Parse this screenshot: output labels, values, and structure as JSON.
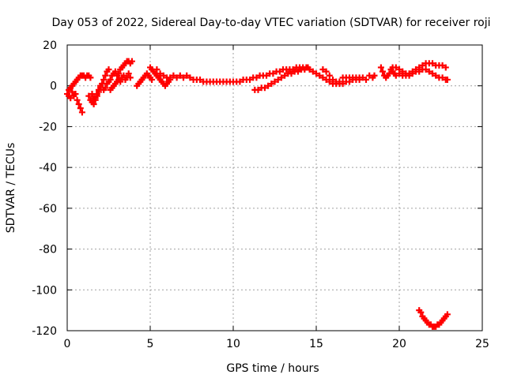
{
  "chart_data": {
    "type": "scatter",
    "title": "Day 053 of 2022, Sidereal Day-to-day VTEC variation (SDTVAR) for receiver roji",
    "xlabel": "GPS time / hours",
    "ylabel": "SDTVAR / TECUs",
    "xlim": [
      0,
      25
    ],
    "ylim": [
      -120,
      20
    ],
    "xticks": [
      0,
      5,
      10,
      15,
      20,
      25
    ],
    "xtick_labels": [
      "0",
      "5",
      "10",
      "15",
      "20",
      "25"
    ],
    "yticks": [
      -120,
      -100,
      -80,
      -60,
      -40,
      -20,
      0,
      20
    ],
    "ytick_labels": [
      "-120",
      "-100",
      "-80",
      "-60",
      "-40",
      "-20",
      "0",
      "20"
    ],
    "grid": true,
    "marker": "plus",
    "marker_color": "#ff0000",
    "series": [
      {
        "name": "SDTVAR",
        "color": "#ff0000",
        "points": [
          [
            0.0,
            -4
          ],
          [
            0.1,
            -5
          ],
          [
            0.2,
            -6
          ],
          [
            0.3,
            -3
          ],
          [
            0.4,
            -5
          ],
          [
            0.5,
            -4
          ],
          [
            0.6,
            -7
          ],
          [
            0.7,
            -9
          ],
          [
            0.8,
            -11
          ],
          [
            0.9,
            -13
          ],
          [
            0.1,
            -2
          ],
          [
            0.2,
            -1
          ],
          [
            0.3,
            0
          ],
          [
            0.4,
            1
          ],
          [
            0.5,
            2
          ],
          [
            0.6,
            3
          ],
          [
            0.7,
            4
          ],
          [
            0.8,
            5
          ],
          [
            0.9,
            5
          ],
          [
            1.0,
            5
          ],
          [
            1.1,
            4
          ],
          [
            1.2,
            5
          ],
          [
            1.3,
            5
          ],
          [
            1.4,
            4
          ],
          [
            1.3,
            -5
          ],
          [
            1.4,
            -7
          ],
          [
            1.5,
            -8
          ],
          [
            1.6,
            -9
          ],
          [
            1.7,
            -7
          ],
          [
            1.8,
            -5
          ],
          [
            1.9,
            -3
          ],
          [
            2.0,
            -1
          ],
          [
            2.1,
            1
          ],
          [
            2.2,
            3
          ],
          [
            2.3,
            5
          ],
          [
            2.4,
            7
          ],
          [
            2.5,
            8
          ],
          [
            1.5,
            -4
          ],
          [
            1.6,
            -6
          ],
          [
            1.7,
            -6
          ],
          [
            1.8,
            -4
          ],
          [
            1.9,
            -2
          ],
          [
            2.0,
            0
          ],
          [
            2.2,
            -2
          ],
          [
            2.3,
            -1
          ],
          [
            2.4,
            1
          ],
          [
            2.5,
            2
          ],
          [
            2.6,
            3
          ],
          [
            2.7,
            5
          ],
          [
            2.8,
            6
          ],
          [
            2.9,
            7
          ],
          [
            3.0,
            5
          ],
          [
            3.1,
            6
          ],
          [
            3.2,
            8
          ],
          [
            3.3,
            9
          ],
          [
            3.4,
            10
          ],
          [
            3.5,
            11
          ],
          [
            3.6,
            12
          ],
          [
            3.7,
            12
          ],
          [
            3.8,
            11
          ],
          [
            3.9,
            12
          ],
          [
            2.6,
            -2
          ],
          [
            2.7,
            -1
          ],
          [
            2.8,
            0
          ],
          [
            2.9,
            1
          ],
          [
            3.0,
            2
          ],
          [
            3.1,
            3
          ],
          [
            3.2,
            2
          ],
          [
            3.3,
            4
          ],
          [
            3.4,
            5
          ],
          [
            3.5,
            3
          ],
          [
            3.6,
            4
          ],
          [
            3.7,
            6
          ],
          [
            3.8,
            4
          ],
          [
            4.2,
            0
          ],
          [
            4.3,
            1
          ],
          [
            4.4,
            2
          ],
          [
            4.5,
            3
          ],
          [
            4.6,
            4
          ],
          [
            4.7,
            5
          ],
          [
            4.8,
            6
          ],
          [
            4.9,
            5
          ],
          [
            5.0,
            4
          ],
          [
            5.1,
            3
          ],
          [
            5.0,
            9
          ],
          [
            5.1,
            8
          ],
          [
            5.2,
            7
          ],
          [
            5.3,
            6
          ],
          [
            5.4,
            5
          ],
          [
            5.5,
            4
          ],
          [
            5.6,
            3
          ],
          [
            5.7,
            2
          ],
          [
            5.8,
            1
          ],
          [
            5.9,
            0
          ],
          [
            6.0,
            1
          ],
          [
            6.1,
            2
          ],
          [
            6.2,
            3
          ],
          [
            5.4,
            8
          ],
          [
            5.6,
            6
          ],
          [
            5.8,
            5
          ],
          [
            6.0,
            4
          ],
          [
            6.2,
            4
          ],
          [
            6.4,
            5
          ],
          [
            6.6,
            4
          ],
          [
            6.8,
            5
          ],
          [
            7.0,
            4
          ],
          [
            7.2,
            5
          ],
          [
            7.4,
            4
          ],
          [
            7.6,
            3
          ],
          [
            7.8,
            3
          ],
          [
            8.0,
            3
          ],
          [
            8.2,
            2
          ],
          [
            8.4,
            2
          ],
          [
            8.6,
            2
          ],
          [
            8.8,
            2
          ],
          [
            9.0,
            2
          ],
          [
            9.2,
            2
          ],
          [
            9.4,
            2
          ],
          [
            9.6,
            2
          ],
          [
            9.8,
            2
          ],
          [
            10.0,
            2
          ],
          [
            10.2,
            2
          ],
          [
            10.4,
            2
          ],
          [
            10.6,
            3
          ],
          [
            10.8,
            3
          ],
          [
            11.0,
            3
          ],
          [
            11.2,
            4
          ],
          [
            11.4,
            4
          ],
          [
            11.6,
            5
          ],
          [
            11.8,
            5
          ],
          [
            12.0,
            5
          ],
          [
            11.3,
            -2
          ],
          [
            11.5,
            -2
          ],
          [
            11.7,
            -1
          ],
          [
            11.9,
            -1
          ],
          [
            12.1,
            0
          ],
          [
            12.3,
            1
          ],
          [
            12.5,
            2
          ],
          [
            12.7,
            3
          ],
          [
            12.9,
            4
          ],
          [
            13.1,
            5
          ],
          [
            12.2,
            6
          ],
          [
            12.4,
            6
          ],
          [
            12.6,
            7
          ],
          [
            12.8,
            7
          ],
          [
            13.0,
            8
          ],
          [
            13.2,
            8
          ],
          [
            13.4,
            8
          ],
          [
            13.6,
            8
          ],
          [
            13.8,
            9
          ],
          [
            14.0,
            9
          ],
          [
            14.2,
            9
          ],
          [
            14.4,
            9
          ],
          [
            14.6,
            8
          ],
          [
            13.3,
            6
          ],
          [
            13.5,
            6
          ],
          [
            13.7,
            7
          ],
          [
            13.9,
            7
          ],
          [
            14.1,
            8
          ],
          [
            14.3,
            8
          ],
          [
            14.5,
            9
          ],
          [
            14.8,
            7
          ],
          [
            15.0,
            6
          ],
          [
            15.2,
            5
          ],
          [
            15.4,
            4
          ],
          [
            15.6,
            3
          ],
          [
            15.8,
            2
          ],
          [
            16.0,
            1
          ],
          [
            16.2,
            1
          ],
          [
            16.4,
            2
          ],
          [
            15.4,
            8
          ],
          [
            15.6,
            7
          ],
          [
            15.8,
            5
          ],
          [
            16.0,
            3
          ],
          [
            16.2,
            2
          ],
          [
            16.4,
            1
          ],
          [
            16.6,
            1
          ],
          [
            16.8,
            2
          ],
          [
            17.0,
            2
          ],
          [
            17.2,
            3
          ],
          [
            17.4,
            3
          ],
          [
            17.6,
            3
          ],
          [
            16.6,
            4
          ],
          [
            16.8,
            4
          ],
          [
            17.0,
            4
          ],
          [
            17.2,
            4
          ],
          [
            17.4,
            4
          ],
          [
            17.6,
            4
          ],
          [
            17.8,
            4
          ],
          [
            18.0,
            3
          ],
          [
            18.2,
            5
          ],
          [
            18.4,
            4
          ],
          [
            18.5,
            5
          ],
          [
            18.9,
            9
          ],
          [
            19.0,
            7
          ],
          [
            19.1,
            5
          ],
          [
            19.2,
            4
          ],
          [
            19.3,
            5
          ],
          [
            19.4,
            6
          ],
          [
            19.5,
            8
          ],
          [
            19.6,
            7
          ],
          [
            19.7,
            6
          ],
          [
            19.8,
            5
          ],
          [
            19.6,
            9
          ],
          [
            19.8,
            9
          ],
          [
            20.0,
            8
          ],
          [
            20.2,
            7
          ],
          [
            20.4,
            6
          ],
          [
            20.6,
            6
          ],
          [
            20.8,
            7
          ],
          [
            21.0,
            8
          ],
          [
            21.2,
            9
          ],
          [
            21.4,
            10
          ],
          [
            21.6,
            11
          ],
          [
            21.8,
            11
          ],
          [
            22.0,
            11
          ],
          [
            22.2,
            10
          ],
          [
            22.4,
            10
          ],
          [
            22.6,
            10
          ],
          [
            22.8,
            9
          ],
          [
            20.0,
            6
          ],
          [
            20.2,
            5
          ],
          [
            20.4,
            5
          ],
          [
            20.6,
            5
          ],
          [
            20.8,
            6
          ],
          [
            21.0,
            7
          ],
          [
            21.2,
            7
          ],
          [
            21.4,
            8
          ],
          [
            21.6,
            8
          ],
          [
            21.8,
            7
          ],
          [
            22.0,
            6
          ],
          [
            22.2,
            5
          ],
          [
            22.4,
            4
          ],
          [
            22.6,
            4
          ],
          [
            22.8,
            3
          ],
          [
            22.9,
            3
          ],
          [
            21.2,
            -110
          ],
          [
            21.3,
            -111
          ],
          [
            21.4,
            -113
          ],
          [
            21.5,
            -114
          ],
          [
            21.6,
            -115
          ],
          [
            21.7,
            -116
          ],
          [
            21.8,
            -117
          ],
          [
            21.9,
            -117
          ],
          [
            22.0,
            -118
          ],
          [
            22.1,
            -118
          ],
          [
            22.2,
            -118
          ],
          [
            22.3,
            -117
          ],
          [
            22.4,
            -117
          ],
          [
            22.5,
            -116
          ],
          [
            22.6,
            -115
          ],
          [
            22.7,
            -114
          ],
          [
            22.8,
            -113
          ],
          [
            22.9,
            -112
          ]
        ]
      }
    ]
  }
}
